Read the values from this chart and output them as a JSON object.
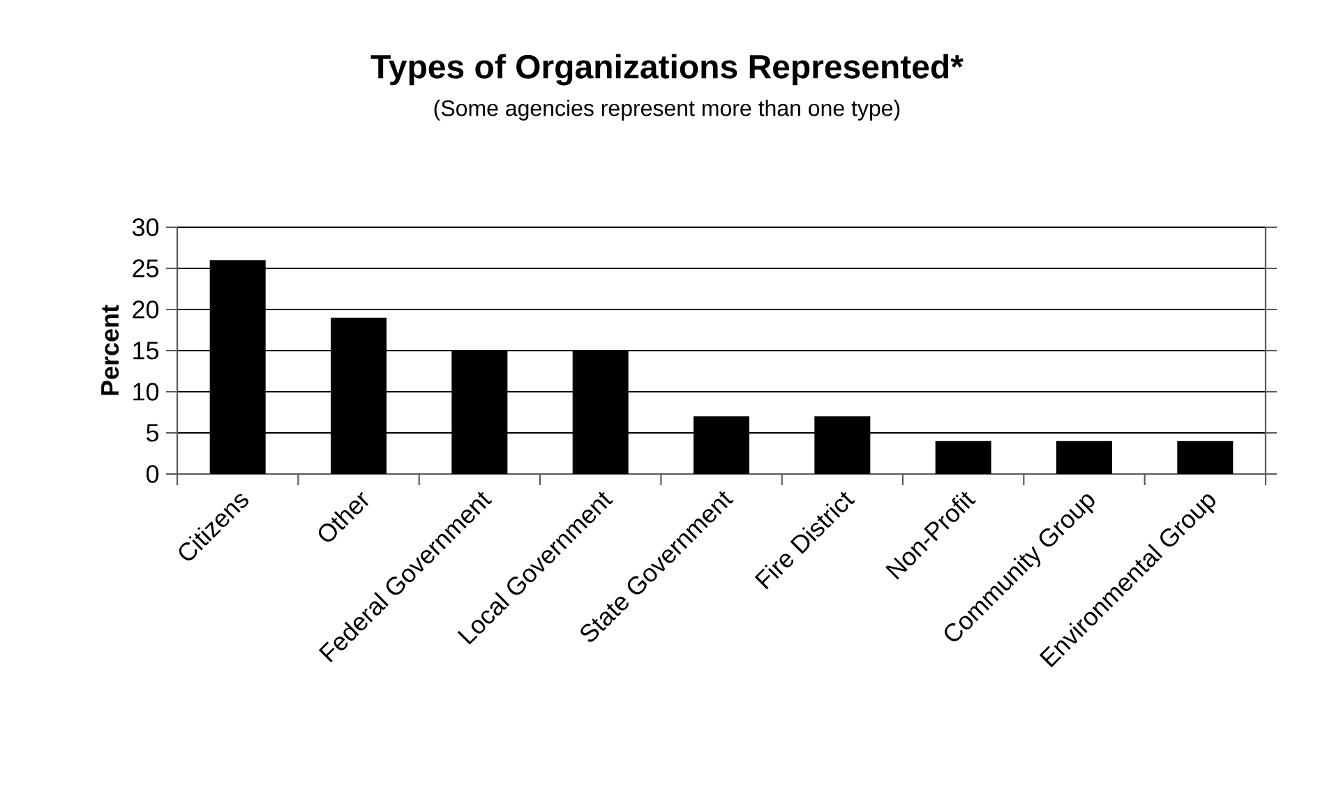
{
  "chart_data": {
    "type": "bar",
    "title": "Types of Organizations Represented*",
    "subtitle": "(Some agencies represent more than one type)",
    "ylabel": "Percent",
    "categories": [
      "Citizens",
      "Other",
      "Federal Government",
      "Local Government",
      "State Government",
      "Fire District",
      "Non-Profit",
      "Community Group",
      "Environmental Group"
    ],
    "values": [
      26,
      19,
      15,
      15,
      7,
      7,
      4,
      4,
      4
    ],
    "color": "#000000",
    "ylim": [
      0,
      30
    ],
    "yticks": [
      0,
      5,
      10,
      15,
      20,
      25,
      30
    ],
    "grid": "y"
  }
}
